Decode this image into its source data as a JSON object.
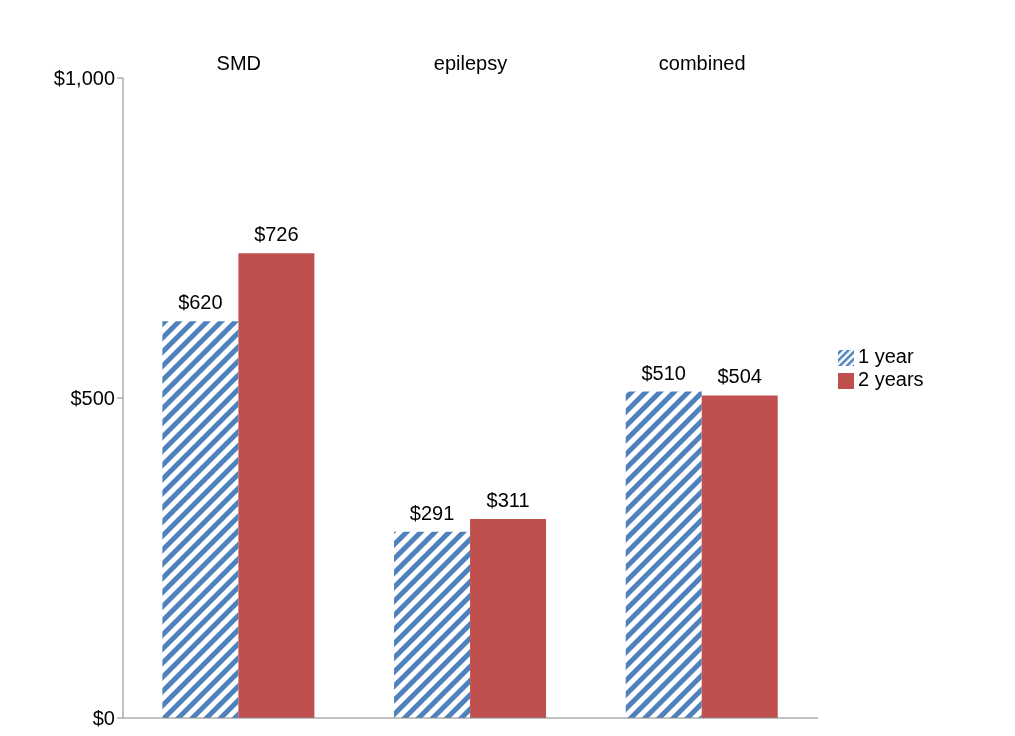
{
  "chart_data": {
    "type": "bar",
    "categories": [
      "SMD",
      "epilepsy",
      "combined"
    ],
    "series": [
      {
        "name": "1 year",
        "color": "#4f81bd",
        "values": [
          620,
          291,
          510
        ],
        "value_labels": [
          "$620",
          "$291",
          "$510"
        ]
      },
      {
        "name": "2 years",
        "color": "#c0504d",
        "values": [
          726,
          311,
          504
        ],
        "value_labels": [
          "$726",
          "$311",
          "$504"
        ]
      }
    ],
    "ylim": [
      0,
      1000
    ],
    "yticks": [
      {
        "value": 0,
        "label": "$0"
      },
      {
        "value": 500,
        "label": "$500"
      },
      {
        "value": 1000,
        "label": "$1,000"
      }
    ],
    "legend": "right"
  }
}
